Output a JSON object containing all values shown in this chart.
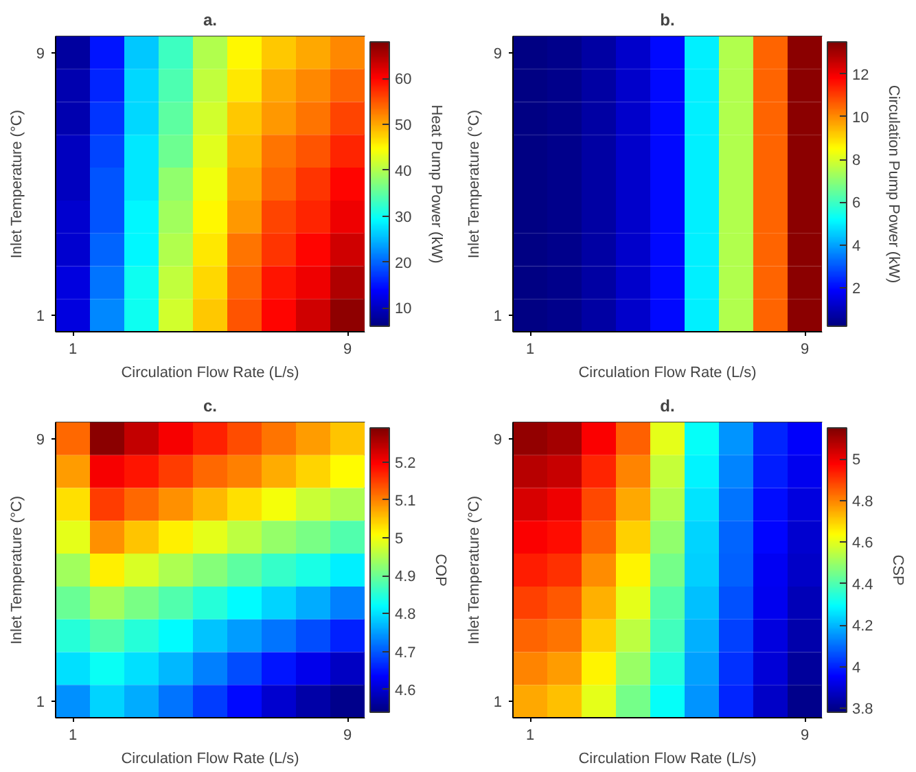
{
  "chart_data": [
    {
      "type": "heatmap",
      "title": "a.",
      "xlabel": "Circulation Flow Rate (L/s)",
      "ylabel": "Inlet Temperature (°C)",
      "clabel": "Heat Pump Power (kW)",
      "categories": [
        "1",
        null,
        null,
        null,
        null,
        null,
        null,
        null,
        "9"
      ],
      "y_categories": [
        "9",
        null,
        null,
        null,
        null,
        null,
        null,
        null,
        "1"
      ],
      "clim": [
        6,
        68
      ],
      "cticks": [
        10,
        20,
        30,
        40,
        50,
        60
      ],
      "grid": false,
      "cells": [
        [
          8,
          15,
          26,
          33,
          40,
          45,
          48,
          50,
          52
        ],
        [
          9,
          16,
          27,
          34,
          41,
          46,
          50,
          52,
          54
        ],
        [
          9,
          17,
          27,
          35,
          42,
          48,
          51,
          53,
          56
        ],
        [
          10,
          18,
          28,
          36,
          43,
          49,
          53,
          55,
          58
        ],
        [
          10,
          19,
          28,
          38,
          44,
          50,
          54,
          57,
          60
        ],
        [
          11,
          19,
          29,
          39,
          45,
          51,
          56,
          58,
          61
        ],
        [
          11,
          20,
          29,
          40,
          46,
          53,
          57,
          60,
          63
        ],
        [
          12,
          21,
          30,
          41,
          47,
          54,
          59,
          61,
          65
        ],
        [
          12,
          22,
          30,
          42,
          48,
          55,
          60,
          63,
          67
        ]
      ]
    },
    {
      "type": "heatmap",
      "title": "b.",
      "xlabel": "Circulation Flow Rate (L/s)",
      "ylabel": "Inlet Temperature (°C)",
      "clabel": "Circulation Pump Power (kW)",
      "categories": [
        "1",
        null,
        null,
        null,
        null,
        null,
        null,
        null,
        "9"
      ],
      "y_categories": [
        "9",
        null,
        null,
        null,
        null,
        null,
        null,
        null,
        "1"
      ],
      "clim": [
        0.2,
        13.5
      ],
      "cticks": [
        2,
        4,
        6,
        8,
        10,
        12
      ],
      "grid": false,
      "cells": [
        [
          0.3,
          0.4,
          0.7,
          1.2,
          2,
          5,
          7.5,
          10.5,
          13.3
        ],
        [
          0.3,
          0.4,
          0.7,
          1.2,
          2,
          5,
          7.5,
          10.5,
          13.3
        ],
        [
          0.3,
          0.4,
          0.7,
          1.2,
          2,
          5,
          7.5,
          10.5,
          13.3
        ],
        [
          0.3,
          0.4,
          0.7,
          1.2,
          2,
          5,
          7.5,
          10.5,
          13.3
        ],
        [
          0.3,
          0.4,
          0.7,
          1.2,
          2,
          5,
          7.5,
          10.5,
          13.3
        ],
        [
          0.3,
          0.4,
          0.7,
          1.2,
          2,
          5,
          7.5,
          10.5,
          13.3
        ],
        [
          0.3,
          0.4,
          0.7,
          1.2,
          2,
          5,
          7.5,
          10.5,
          13.3
        ],
        [
          0.3,
          0.4,
          0.7,
          1.2,
          2,
          5,
          7.5,
          10.5,
          13.3
        ],
        [
          0.3,
          0.4,
          0.7,
          1.2,
          2,
          5,
          7.5,
          10.5,
          13.3
        ]
      ]
    },
    {
      "type": "heatmap",
      "title": "c.",
      "xlabel": "Circulation Flow Rate (L/s)",
      "ylabel": "Inlet Temperature (°C)",
      "clabel": "COP",
      "categories": [
        "1",
        null,
        null,
        null,
        null,
        null,
        null,
        null,
        "9"
      ],
      "y_categories": [
        "9",
        null,
        null,
        null,
        null,
        null,
        null,
        null,
        "1"
      ],
      "clim": [
        4.54,
        5.29
      ],
      "cticks": [
        4.6,
        4.7,
        4.8,
        4.9,
        5,
        5.1,
        5.2
      ],
      "grid": false,
      "cells": [
        [
          5.12,
          5.28,
          5.24,
          5.2,
          5.17,
          5.14,
          5.11,
          5.08,
          5.05
        ],
        [
          5.08,
          5.2,
          5.18,
          5.15,
          5.12,
          5.1,
          5.07,
          5.04,
          5.01
        ],
        [
          5.03,
          5.15,
          5.12,
          5.09,
          5.06,
          5.03,
          5.0,
          4.97,
          4.95
        ],
        [
          4.99,
          5.09,
          5.05,
          5.02,
          4.99,
          4.96,
          4.93,
          4.91,
          4.88
        ],
        [
          4.94,
          5.02,
          4.98,
          4.95,
          4.92,
          4.89,
          4.86,
          4.84,
          4.81
        ],
        [
          4.9,
          4.94,
          4.91,
          4.88,
          4.85,
          4.82,
          4.79,
          4.76,
          4.73
        ],
        [
          4.85,
          4.88,
          4.85,
          4.82,
          4.78,
          4.75,
          4.72,
          4.69,
          4.66
        ],
        [
          4.8,
          4.83,
          4.8,
          4.77,
          4.73,
          4.69,
          4.65,
          4.62,
          4.59
        ],
        [
          4.74,
          4.79,
          4.76,
          4.72,
          4.68,
          4.64,
          4.6,
          4.57,
          4.55
        ]
      ]
    },
    {
      "type": "heatmap",
      "title": "d.",
      "xlabel": "Circulation Flow Rate (L/s)",
      "ylabel": "Inlet Temperature (°C)",
      "clabel": "CSP",
      "categories": [
        "1",
        null,
        null,
        null,
        null,
        null,
        null,
        null,
        "9"
      ],
      "y_categories": [
        "9",
        null,
        null,
        null,
        null,
        null,
        null,
        null,
        "1"
      ],
      "clim": [
        3.78,
        5.15
      ],
      "cticks": [
        3.8,
        4,
        4.2,
        4.4,
        4.6,
        4.8,
        5
      ],
      "grid": false,
      "cells": [
        [
          5.12,
          5.1,
          4.98,
          4.85,
          4.6,
          4.3,
          4.15,
          4.0,
          3.95
        ],
        [
          5.07,
          5.05,
          4.93,
          4.8,
          4.56,
          4.28,
          4.13,
          3.99,
          3.93
        ],
        [
          5.03,
          5.0,
          4.88,
          4.75,
          4.53,
          4.26,
          4.11,
          3.97,
          3.91
        ],
        [
          4.98,
          4.96,
          4.84,
          4.7,
          4.49,
          4.24,
          4.09,
          3.96,
          3.89
        ],
        [
          4.94,
          4.91,
          4.79,
          4.65,
          4.45,
          4.23,
          4.08,
          3.94,
          3.88
        ],
        [
          4.89,
          4.86,
          4.74,
          4.6,
          4.41,
          4.21,
          4.06,
          3.93,
          3.86
        ],
        [
          4.84,
          4.82,
          4.7,
          4.55,
          4.38,
          4.19,
          4.04,
          3.91,
          3.84
        ],
        [
          4.8,
          4.77,
          4.65,
          4.5,
          4.34,
          4.17,
          4.02,
          3.9,
          3.82
        ],
        [
          4.75,
          4.72,
          4.6,
          4.45,
          4.3,
          4.15,
          4.0,
          3.88,
          3.8
        ]
      ]
    }
  ]
}
